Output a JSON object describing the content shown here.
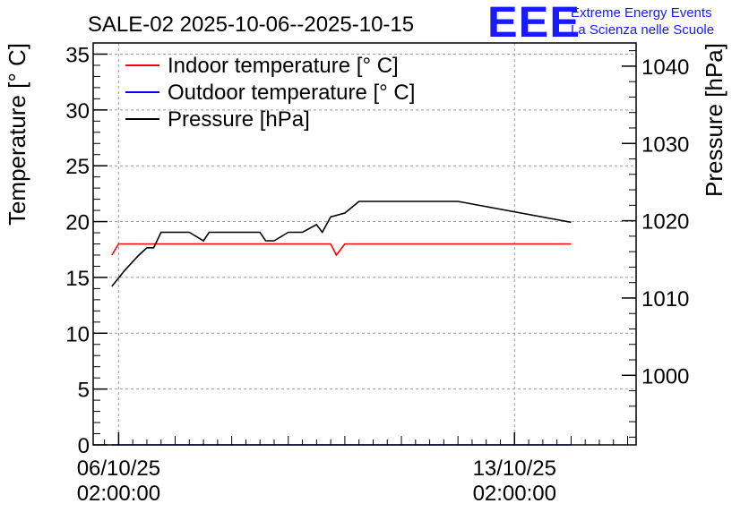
{
  "logo": {
    "mark": "EEE",
    "line1": "Extreme Energy Events",
    "line2": "La Scienza nelle Scuole",
    "color": "#1a1aff"
  },
  "chart_data": {
    "type": "line",
    "title": "SALE-02 2025-10-06--2025-10-15",
    "ylabel": "Temperature [° C]",
    "y2label": "Pressure [hPa]",
    "ylim": [
      0,
      36
    ],
    "y2lim": [
      991,
      1043
    ],
    "yticks": [
      0,
      5,
      10,
      15,
      20,
      25,
      30,
      35
    ],
    "y2ticks": [
      1000,
      1010,
      1020,
      1030,
      1040
    ],
    "xlim_days": [
      -0.45,
      9.15
    ],
    "xticks": [
      {
        "day": 0,
        "line1": "06/10/25",
        "line2": "02:00:00"
      },
      {
        "day": 7,
        "line1": "13/10/25",
        "line2": "02:00:00"
      }
    ],
    "grid": true,
    "legend_position": "top-left",
    "series": [
      {
        "name": "Indoor temperature [° C]",
        "axis": "left",
        "color": "#ff0000",
        "x": [
          -0.12,
          0.0,
          0.5,
          1.0,
          1.5,
          1.6,
          1.75,
          2.0,
          2.5,
          2.5,
          2.75,
          2.95,
          3.25,
          3.5,
          3.75,
          3.85,
          4.0,
          4.25,
          4.5,
          6.0,
          7.0,
          8.0
        ],
        "y": [
          17.0,
          18.0,
          18.0,
          18.0,
          18.0,
          18.0,
          18.0,
          18.0,
          18.0,
          18.0,
          18.0,
          18.0,
          18.0,
          18.0,
          18.0,
          17.0,
          18.0,
          18.0,
          18.0,
          18.0,
          18.0,
          18.0
        ]
      },
      {
        "name": "Outdoor temperature [° C]",
        "axis": "left",
        "color": "#0000ff",
        "x": [
          -0.12,
          8.0
        ],
        "y": [
          0,
          0
        ]
      },
      {
        "name": "Pressure [hPa]",
        "axis": "right",
        "color": "#000000",
        "x": [
          -0.12,
          0.1,
          0.35,
          0.5,
          0.62,
          0.75,
          1.0,
          1.25,
          1.5,
          1.6,
          1.75,
          2.0,
          2.5,
          2.6,
          2.75,
          3.0,
          3.25,
          3.5,
          3.6,
          3.75,
          4.0,
          4.25,
          4.5,
          5.0,
          5.5,
          6.0,
          8.0
        ],
        "y": [
          1011.5,
          1013.5,
          1015.5,
          1016.5,
          1016.5,
          1018.5,
          1018.5,
          1018.5,
          1017.4,
          1018.5,
          1018.5,
          1018.5,
          1018.5,
          1017.4,
          1017.4,
          1018.5,
          1018.5,
          1019.5,
          1018.5,
          1020.5,
          1021.0,
          1022.5,
          1022.5,
          1022.5,
          1022.5,
          1022.5,
          1019.8
        ]
      }
    ]
  }
}
